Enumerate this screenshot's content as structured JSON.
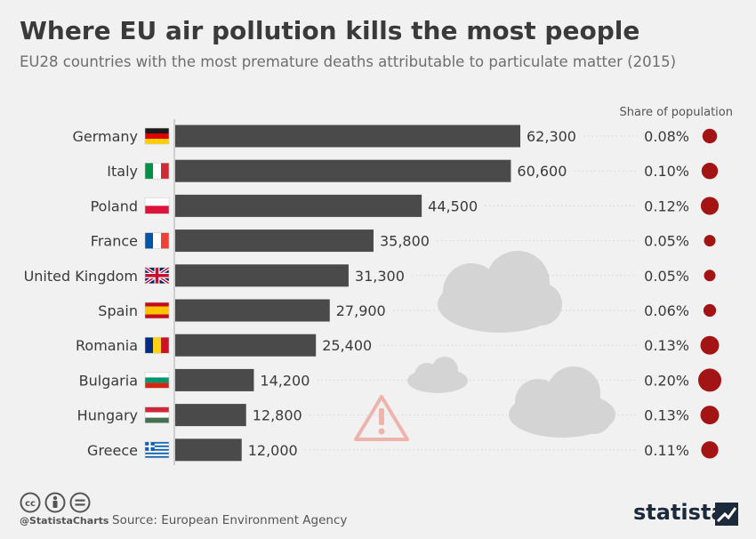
{
  "header": {
    "title": "Where EU air pollution kills the most people",
    "subtitle": "EU28 countries with the most premature deaths attributable to particulate matter (2015)"
  },
  "chart_data": {
    "type": "bar",
    "orientation": "horizontal",
    "categories": [
      "Germany",
      "Italy",
      "Poland",
      "France",
      "United Kingdom",
      "Spain",
      "Romania",
      "Bulgaria",
      "Hungary",
      "Greece"
    ],
    "value_labels": [
      "62,300",
      "60,600",
      "44,500",
      "35,800",
      "31,300",
      "27,900",
      "25,400",
      "14,200",
      "12,800",
      "12,000"
    ],
    "values": [
      62300,
      60600,
      44500,
      35800,
      31300,
      27900,
      25400,
      14200,
      12800,
      12000
    ],
    "share_header": "Share of population",
    "share_labels": [
      "0.08%",
      "0.10%",
      "0.12%",
      "0.05%",
      "0.05%",
      "0.06%",
      "0.13%",
      "0.20%",
      "0.13%",
      "0.11%"
    ],
    "share_values": [
      0.08,
      0.1,
      0.12,
      0.05,
      0.05,
      0.06,
      0.13,
      0.2,
      0.13,
      0.11
    ],
    "xlim": [
      0,
      62300
    ],
    "bar_color": "#4a4a4a",
    "dot_color": "#a31414"
  },
  "flags": [
    {
      "country": "Germany",
      "pattern": "h",
      "colors": [
        "#1a1a1a",
        "#dd0000",
        "#ffce00"
      ]
    },
    {
      "country": "Italy",
      "pattern": "v",
      "colors": [
        "#009246",
        "#ffffff",
        "#ce2b37"
      ]
    },
    {
      "country": "Poland",
      "pattern": "h",
      "colors": [
        "#ffffff",
        "#dc143c"
      ]
    },
    {
      "country": "France",
      "pattern": "v",
      "colors": [
        "#0055a4",
        "#ffffff",
        "#ef4135"
      ]
    },
    {
      "country": "United Kingdom",
      "pattern": "uk",
      "colors": [
        "#012169",
        "#ffffff",
        "#c8102e"
      ]
    },
    {
      "country": "Spain",
      "pattern": "es",
      "colors": [
        "#c60b1e",
        "#ffc400",
        "#c60b1e"
      ]
    },
    {
      "country": "Romania",
      "pattern": "v",
      "colors": [
        "#002b7f",
        "#fcd116",
        "#ce1126"
      ]
    },
    {
      "country": "Bulgaria",
      "pattern": "h",
      "colors": [
        "#ffffff",
        "#00966e",
        "#d62612"
      ]
    },
    {
      "country": "Hungary",
      "pattern": "h",
      "colors": [
        "#ce2939",
        "#ffffff",
        "#477050"
      ]
    },
    {
      "country": "Greece",
      "pattern": "gr",
      "colors": [
        "#0d5eaf",
        "#ffffff"
      ]
    }
  ],
  "footer": {
    "handle": "@StatistaCharts",
    "source": "Source: European Environment Agency",
    "logo_text": "statista"
  }
}
